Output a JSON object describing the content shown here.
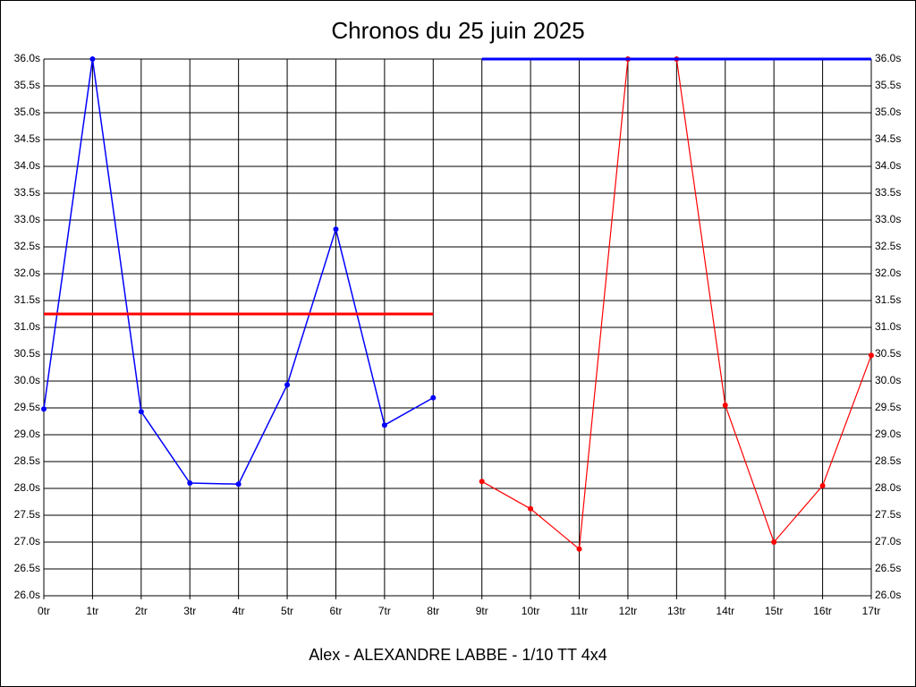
{
  "chart_data": {
    "type": "line",
    "title": "Chronos du 25 juin 2025",
    "x_label": "Alex - ALEXANDRE LABBE - 1/10 TT 4x4",
    "categories": [
      "0tr",
      "1tr",
      "2tr",
      "3tr",
      "4tr",
      "5tr",
      "6tr",
      "7tr",
      "8tr",
      "9tr",
      "10tr",
      "11tr",
      "12tr",
      "13tr",
      "14tr",
      "15tr",
      "16tr",
      "17tr"
    ],
    "series": [
      {
        "color": "#0000ff",
        "markers": true,
        "width": 1.5,
        "values": [
          29.48,
          36,
          29.43,
          28.1,
          28.08,
          29.93,
          32.83,
          29.18,
          29.69,
          null,
          null,
          null,
          null,
          null,
          null,
          null,
          null,
          null
        ]
      },
      {
        "color": "#ff0000",
        "markers": true,
        "width": 1.2,
        "values": [
          null,
          null,
          null,
          null,
          null,
          null,
          null,
          null,
          null,
          28.13,
          27.62,
          26.87,
          36,
          36,
          29.55,
          27,
          28.05,
          30.48
        ]
      },
      {
        "color": "#ff0000",
        "markers": false,
        "width": 3,
        "values": [
          31.25,
          31.25,
          31.25,
          31.25,
          31.25,
          31.25,
          31.25,
          31.25,
          31.25,
          null,
          null,
          null,
          null,
          null,
          null,
          null,
          null,
          null
        ]
      },
      {
        "color": "#0000ff",
        "markers": false,
        "width": 3,
        "values": [
          null,
          null,
          null,
          null,
          null,
          null,
          null,
          null,
          null,
          36,
          36,
          36,
          36,
          36,
          36,
          36,
          36,
          36
        ]
      }
    ],
    "ylim": [
      26,
      36
    ],
    "yticks": [
      {
        "value": 26,
        "label": "26.0s"
      },
      {
        "value": 26.5,
        "label": "26.5s"
      },
      {
        "value": 27,
        "label": "27.0s"
      },
      {
        "value": 27.5,
        "label": "27.5s"
      },
      {
        "value": 28,
        "label": "28.0s"
      },
      {
        "value": 28.5,
        "label": "28.5s"
      },
      {
        "value": 29,
        "label": "29.0s"
      },
      {
        "value": 29.5,
        "label": "29.5s"
      },
      {
        "value": 30,
        "label": "30.0s"
      },
      {
        "value": 30.5,
        "label": "30.5s"
      },
      {
        "value": 31,
        "label": "31.0s"
      },
      {
        "value": 31.5,
        "label": "31.5s"
      },
      {
        "value": 32,
        "label": "32.0s"
      },
      {
        "value": 32.5,
        "label": "32.5s"
      },
      {
        "value": 33,
        "label": "33.0s"
      },
      {
        "value": 33.5,
        "label": "33.5s"
      },
      {
        "value": 34,
        "label": "34.0s"
      },
      {
        "value": 34.5,
        "label": "34.5s"
      },
      {
        "value": 35,
        "label": "35.0s"
      },
      {
        "value": 35.5,
        "label": "35.5s"
      },
      {
        "value": 36,
        "label": "36.0s"
      }
    ],
    "grid": true
  }
}
